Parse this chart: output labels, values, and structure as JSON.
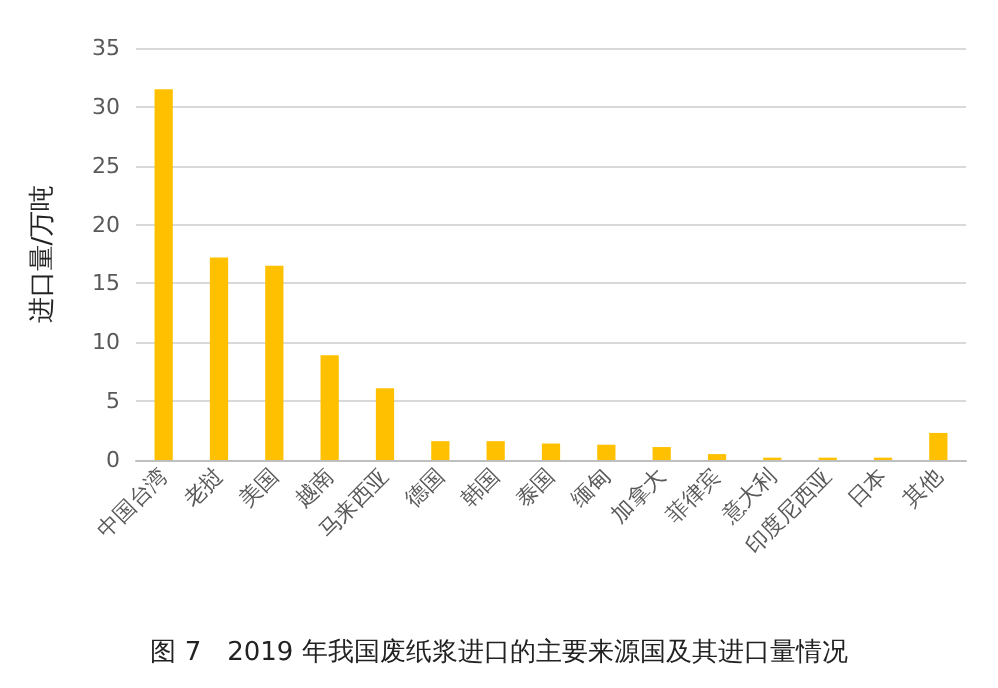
{
  "chart_data": {
    "type": "bar",
    "title": "图 7　2019 年我国废纸浆进口的主要来源国及其进口量情况",
    "ylabel": "进口量/万吨",
    "categories": [
      "中国台湾",
      "老挝",
      "美国",
      "越南",
      "马来西亚",
      "德国",
      "韩国",
      "泰国",
      "缅甸",
      "加拿大",
      "菲律宾",
      "意大利",
      "印度尼西亚",
      "日本",
      "其他"
    ],
    "values": [
      31.5,
      17.2,
      16.5,
      8.9,
      6.1,
      1.6,
      1.6,
      1.4,
      1.3,
      1.1,
      0.5,
      0.2,
      0.2,
      0.2,
      2.3
    ],
    "color": "#ffc000",
    "ylim": [
      0,
      35
    ],
    "yticks": [
      0,
      5,
      10,
      15,
      20,
      25,
      30,
      35
    ],
    "grid": "y"
  }
}
